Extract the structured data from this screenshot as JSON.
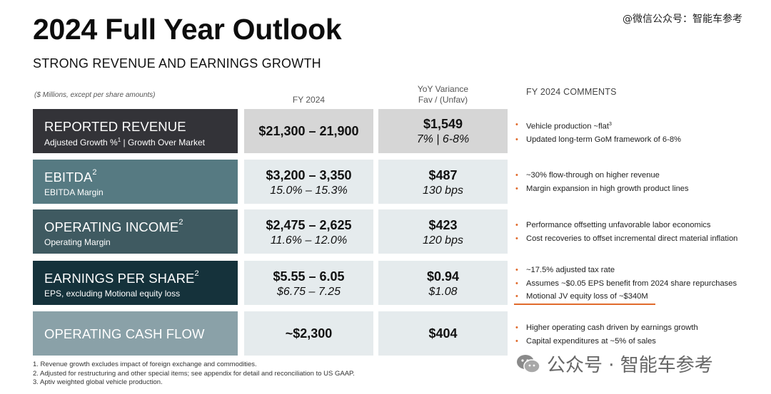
{
  "header": {
    "title": "2024 Full Year Outlook",
    "subtitle": "STRONG REVENUE AND EARNINGS GROWTH",
    "watermark_top": "@微信公众号：智能车参考"
  },
  "table": {
    "note": "($ Millions, except per share amounts)",
    "col_fy": "FY 2024",
    "col_var_line1": "YoY Variance",
    "col_var_line2": "Fav / (Unfav)",
    "col_comments": "FY 2024 COMMENTS",
    "rows": [
      {
        "label": "REPORTED REVENUE",
        "sup": "",
        "sub_a": "Adjusted Growth %",
        "sub_sup": "1",
        "sub_b": " | Growth Over Market",
        "value": "$21,300 – 21,900",
        "value_sub": "",
        "variance": "$1,549",
        "variance_sub": "7% | 6-8%",
        "comments": [
          "Vehicle production ~flat",
          "Updated long-term GoM framework of 6-8%"
        ],
        "comment_sup": "3"
      },
      {
        "label": "EBITDA",
        "sup": "2",
        "sub_a": "EBITDA Margin",
        "value": "$3,200 – 3,350",
        "value_sub": "15.0% – 15.3%",
        "variance": "$487",
        "variance_sub": "130 bps",
        "comments": [
          "~30% flow-through on higher revenue",
          "Margin expansion in high growth product lines"
        ]
      },
      {
        "label": "OPERATING INCOME",
        "sup": "2",
        "sub_a": "Operating Margin",
        "value": "$2,475 – 2,625",
        "value_sub": "11.6% – 12.0%",
        "variance": "$423",
        "variance_sub": "120 bps",
        "comments": [
          "Performance offsetting unfavorable labor economics",
          "Cost recoveries to offset incremental direct material inflation"
        ]
      },
      {
        "label": "EARNINGS PER SHARE",
        "sup": "2",
        "sub_a": "EPS, excluding Motional equity loss",
        "value": "$5.55 – 6.05",
        "value_sub": "$6.75 – 7.25",
        "variance": "$0.94",
        "variance_sub": "$1.08",
        "comments": [
          "~17.5% adjusted tax rate",
          "Assumes ~$0.05 EPS benefit from 2024 share repurchases",
          "Motional JV equity loss of ~$340M"
        ]
      },
      {
        "label": "OPERATING CASH FLOW",
        "sup": "",
        "sub_a": "",
        "value": "~$2,300",
        "value_sub": "",
        "variance": "$404",
        "variance_sub": "",
        "comments": [
          "Higher operating cash driven by earnings growth",
          "Capital expenditures at ~5% of sales"
        ]
      }
    ]
  },
  "footnotes": [
    "1. Revenue growth excludes impact of foreign exchange and commodities.",
    "2. Adjusted for restructuring and other special items; see appendix for detail and reconciliation to US GAAP.",
    "3. Aptiv weighted global vehicle production."
  ],
  "watermark_bottom": "公众号 · 智能车参考",
  "colors": {
    "revenue": "#333338",
    "ebitda": "#567a82",
    "operating_income": "#3f5a61",
    "eps": "#15323b",
    "ocf": "#8aa1a8",
    "gray_cell": "#d6d6d6",
    "light_cell": "#e5ebed",
    "accent": "#e06a2b"
  }
}
